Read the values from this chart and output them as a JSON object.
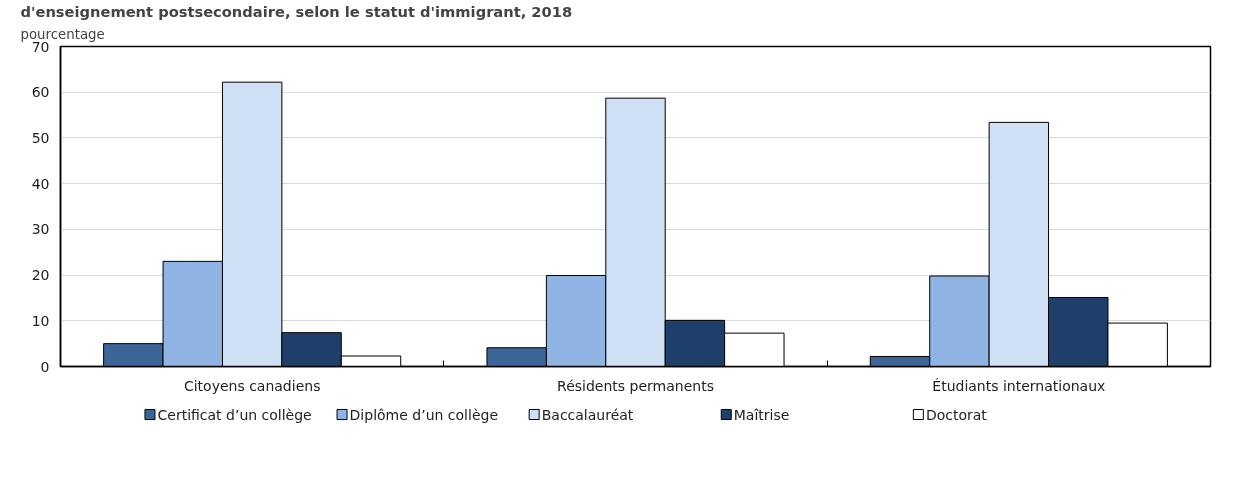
{
  "chart_data": {
    "type": "bar",
    "title": "d'enseignement postsecondaire, selon le statut d'immigrant, 2018",
    "ylabel": "pourcentage",
    "categories": [
      "Citoyens canadiens",
      "Résidents permanents",
      "Étudiants internationaux"
    ],
    "series": [
      {
        "name": "Certificat d’un collège",
        "color": "#3c6698",
        "values": [
          5.0,
          4.1,
          2.2
        ]
      },
      {
        "name": "Diplôme d’un collège",
        "color": "#8fb4e3",
        "values": [
          23.0,
          19.9,
          19.8
        ]
      },
      {
        "name": "Baccalauréat",
        "color": "#cfdff4",
        "values": [
          62.2,
          58.7,
          53.4
        ]
      },
      {
        "name": "Maîtrise",
        "color": "#1f3f6b",
        "values": [
          7.4,
          10.1,
          15.1
        ]
      },
      {
        "name": "Doctorat",
        "color": "#ffffff",
        "values": [
          2.3,
          7.3,
          9.5
        ]
      }
    ],
    "ylim": [
      0,
      70
    ],
    "yticks": [
      0,
      10,
      20,
      30,
      40,
      50,
      60,
      70
    ],
    "grid": "y",
    "legend": "bottom"
  }
}
